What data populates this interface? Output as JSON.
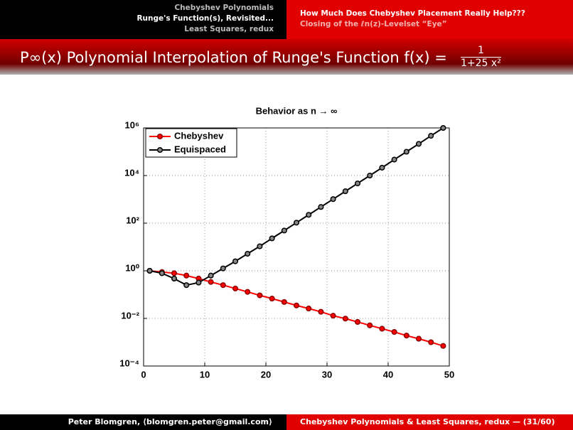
{
  "header": {
    "left": [
      "Chebyshev Polynomials",
      "Runge's Function(s), Revisited...",
      "Least Squares, redux"
    ],
    "right": [
      "How Much Does Chebyshev Placement Really Help???",
      "Closing of the ℓn(z)-Levelset “Eye”"
    ]
  },
  "slide_title": {
    "text": "P∞(x) Polynomial Interpolation of Runge's Function f(x) =",
    "numerator": "1",
    "denominator": "1+25 x²"
  },
  "footer": {
    "left": "Peter Blomgren, ⟨blomgren.peter@gmail.com⟩",
    "right": "Chebyshev Polynomials & Least Squares, redux — (31/60)"
  },
  "chart_data": {
    "type": "line",
    "title": "Behavior as n → ∞",
    "x": [
      1,
      3,
      5,
      7,
      9,
      11,
      13,
      15,
      17,
      19,
      21,
      23,
      25,
      27,
      29,
      31,
      33,
      35,
      37,
      39,
      41,
      43,
      45,
      47,
      49
    ],
    "series": [
      {
        "name": "Chebyshev",
        "color": "#ff0000",
        "values": [
          1,
          0.89,
          0.79,
          0.63,
          0.47,
          0.34,
          0.25,
          0.18,
          0.13,
          0.093,
          0.068,
          0.049,
          0.035,
          0.026,
          0.019,
          0.013,
          0.0098,
          0.0071,
          0.0051,
          0.0037,
          0.0027,
          0.0019,
          0.0014,
          0.001,
          0.0007
        ]
      },
      {
        "name": "Equispaced",
        "color": "#000000",
        "values": [
          1,
          0.79,
          0.47,
          0.25,
          0.32,
          0.63,
          1.26,
          2.5,
          5.2,
          10.7,
          23,
          49,
          105,
          224,
          479,
          1023,
          2188,
          4677,
          10000,
          21380,
          46770,
          100000,
          213800,
          467700,
          1000000
        ]
      }
    ],
    "xlim": [
      0,
      50
    ],
    "xticks": [
      0,
      10,
      20,
      30,
      40,
      50
    ],
    "ylim": [
      0.0001,
      1000000
    ],
    "log_y": true,
    "yticks": [
      {
        "value": 0.0001,
        "label": "10⁻⁴"
      },
      {
        "value": 0.01,
        "label": "10⁻²"
      },
      {
        "value": 1,
        "label": "10⁰"
      },
      {
        "value": 100,
        "label": "10²"
      },
      {
        "value": 10000,
        "label": "10⁴"
      },
      {
        "value": 1000000,
        "label": "10⁶"
      }
    ],
    "grid": true,
    "legend": "upper left"
  }
}
